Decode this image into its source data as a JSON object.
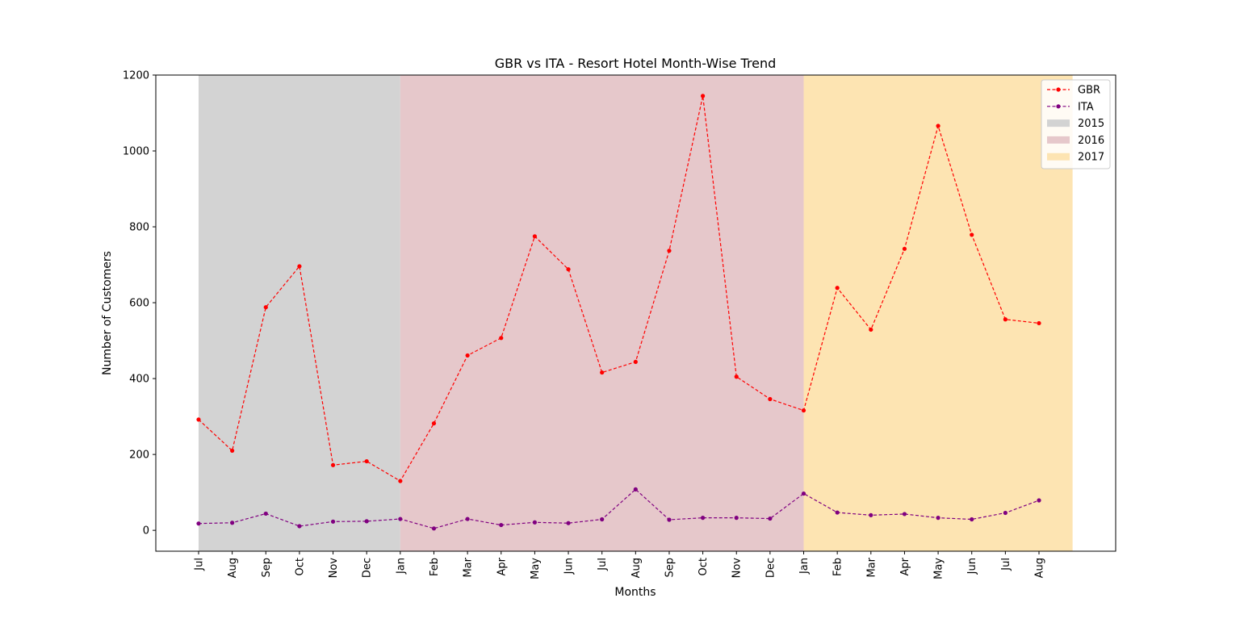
{
  "chart_data": {
    "type": "line",
    "title": "GBR vs ITA - Resort Hotel Month-Wise Trend",
    "xlabel": "Months",
    "ylabel": "Number of Customers",
    "ylim": [
      -55,
      1200
    ],
    "yticks": [
      0,
      200,
      400,
      600,
      800,
      1000,
      1200
    ],
    "categories": [
      "Jul",
      "Aug",
      "Sep",
      "Oct",
      "Nov",
      "Dec",
      "Jan",
      "Feb",
      "Mar",
      "Apr",
      "May",
      "Jun",
      "Jul",
      "Aug",
      "Sep",
      "Oct",
      "Nov",
      "Dec",
      "Jan",
      "Feb",
      "Mar",
      "Apr",
      "May",
      "Jun",
      "Jul",
      "Aug"
    ],
    "series": [
      {
        "name": "GBR",
        "color": "#ff0000",
        "values": [
          292,
          210,
          588,
          696,
          172,
          182,
          130,
          282,
          461,
          507,
          775,
          688,
          416,
          444,
          737,
          1145,
          405,
          346,
          316,
          639,
          529,
          742,
          1066,
          779,
          556,
          546
        ]
      },
      {
        "name": "ITA",
        "color": "#800080",
        "values": [
          18,
          20,
          44,
          11,
          23,
          24,
          30,
          5,
          30,
          14,
          21,
          19,
          29,
          108,
          28,
          33,
          33,
          31,
          97,
          47,
          40,
          43,
          33,
          29,
          46,
          79
        ]
      }
    ],
    "bands": [
      {
        "name": "2015",
        "color": "#d3d3d3",
        "from": 0,
        "to": 6
      },
      {
        "name": "2016",
        "color": "#e6c8cb",
        "from": 6,
        "to": 18
      },
      {
        "name": "2017",
        "color": "#fde4b2",
        "from": 18,
        "to": 26
      }
    ],
    "legend_position": "top-right",
    "grid": false
  }
}
